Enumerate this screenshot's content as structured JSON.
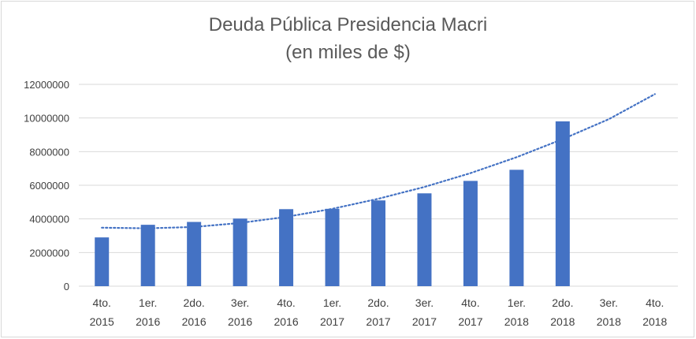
{
  "chart_data": {
    "type": "bar",
    "title_lines": [
      "Deuda Pública Presidencia Macri",
      "(en miles de $)"
    ],
    "xlabel": "",
    "ylabel": "",
    "ylim": [
      0,
      12000000
    ],
    "yticks": [
      "0",
      "2000000",
      "4000000",
      "6000000",
      "8000000",
      "10000000",
      "12000000"
    ],
    "categories": [
      [
        "4to.",
        "2015"
      ],
      [
        "1er.",
        "2016"
      ],
      [
        "2do.",
        "2016"
      ],
      [
        "3er.",
        "2016"
      ],
      [
        "4to.",
        "2016"
      ],
      [
        "1er.",
        "2017"
      ],
      [
        "2do.",
        "2017"
      ],
      [
        "3er.",
        "2017"
      ],
      [
        "4to.",
        "2017"
      ],
      [
        "1er.",
        "2018"
      ],
      [
        "2do.",
        "2018"
      ],
      [
        "3er.",
        "2018"
      ],
      [
        "4to.",
        "2018"
      ]
    ],
    "values": [
      2900000,
      3650000,
      3820000,
      4020000,
      4580000,
      4600000,
      5100000,
      5520000,
      6260000,
      6920000,
      9800000,
      null,
      null
    ],
    "trendline": {
      "type": "polynomial",
      "values": [
        3480000,
        3440000,
        3520000,
        3760000,
        4120000,
        4600000,
        5200000,
        5900000,
        6720000,
        7670000,
        8740000,
        9930000,
        11420000
      ]
    },
    "grid": true,
    "legend": "none",
    "colors": {
      "bar": "#4472c4",
      "trend": "#4472c4",
      "grid": "#d9d9d9",
      "text": "#595959"
    }
  }
}
